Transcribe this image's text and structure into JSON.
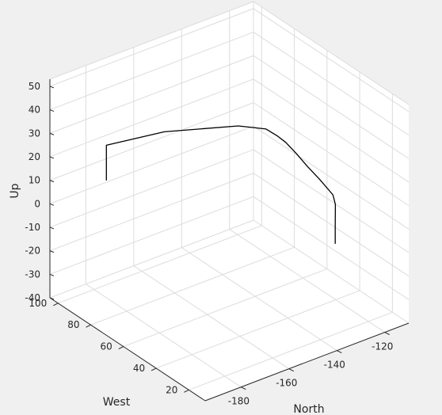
{
  "chart_data": {
    "type": "line3d",
    "title": "",
    "axes": {
      "north": {
        "label": "North",
        "ticks": [
          -180,
          -160,
          -140,
          -120
        ],
        "lim": [
          -195,
          -110
        ]
      },
      "west": {
        "label": "West",
        "ticks": [
          20,
          40,
          60,
          80,
          100
        ],
        "lim": [
          10,
          105
        ]
      },
      "up": {
        "label": "Up",
        "ticks": [
          -40,
          -30,
          -20,
          -10,
          0,
          10,
          20,
          30,
          40,
          50
        ],
        "lim": [
          -40,
          53
        ]
      }
    },
    "grid": true,
    "background": "#ffffff",
    "figure_background": "#f0f0f0",
    "series": [
      {
        "color": "#000000",
        "points": [
          {
            "north": -174.5,
            "west": 100.5,
            "up": 4
          },
          {
            "north": -174.5,
            "west": 100.5,
            "up": 19
          },
          {
            "north": -160.3,
            "west": 85.8,
            "up": 26
          },
          {
            "north": -141,
            "west": 68.9,
            "up": 28.8
          },
          {
            "north": -134.5,
            "west": 61.4,
            "up": 28.4
          },
          {
            "north": -132,
            "west": 58.3,
            "up": 26
          },
          {
            "north": -130,
            "west": 55.9,
            "up": 23.5
          },
          {
            "north": -127.5,
            "west": 52.9,
            "up": 19
          },
          {
            "north": -125,
            "west": 49.8,
            "up": 14
          },
          {
            "north": -122.2,
            "west": 46.6,
            "up": 9
          },
          {
            "north": -119.2,
            "west": 42.9,
            "up": 3
          },
          {
            "north": -118.6,
            "west": 42.3,
            "up": -1
          },
          {
            "north": -119.2,
            "west": 41.5,
            "up": -10
          },
          {
            "north": -119.4,
            "west": 41.2,
            "up": -17
          }
        ]
      }
    ]
  }
}
